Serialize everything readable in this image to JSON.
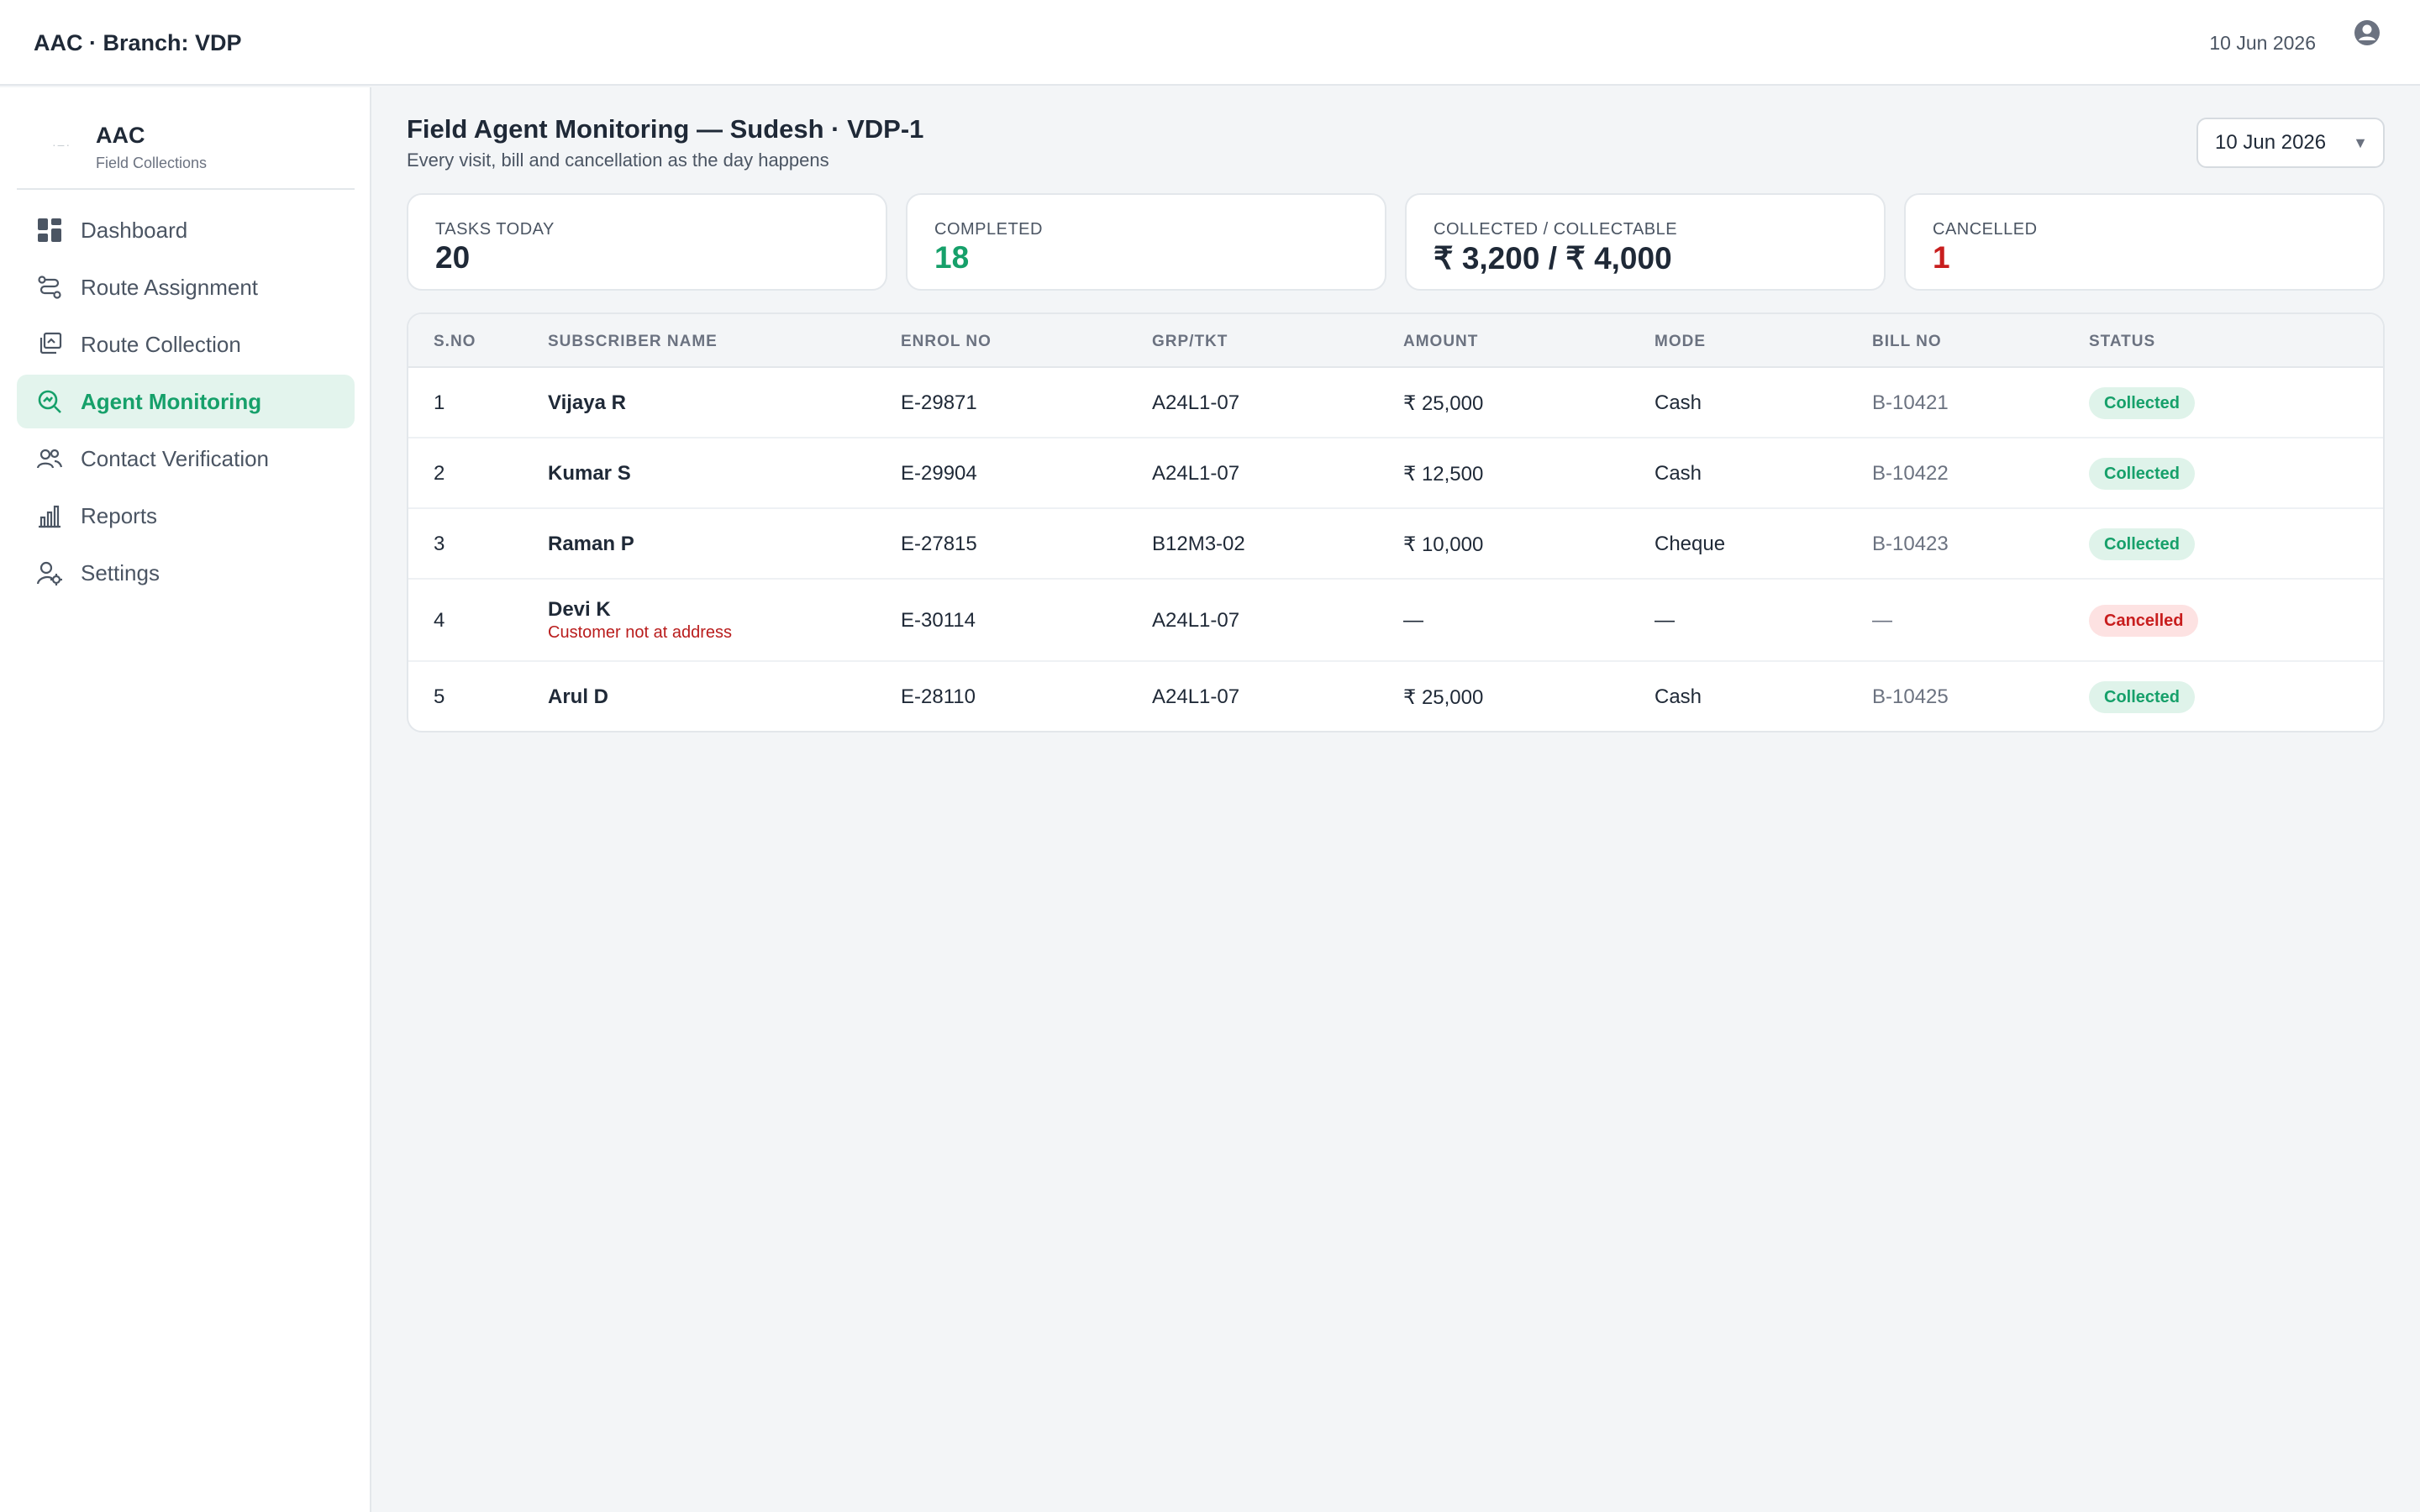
{
  "topbar": {
    "brand": "AAC · Branch: VDP",
    "date": "10 Jun 2026",
    "user_icon": "user-circle-icon"
  },
  "sidebar": {
    "logo_name": "AAC",
    "logo_sub": "Field Collections",
    "items": [
      {
        "label": "Dashboard",
        "icon": "dashboard-grid-icon",
        "active": false
      },
      {
        "label": "Route Assignment",
        "icon": "route-icon",
        "active": false
      },
      {
        "label": "Route Collection",
        "icon": "collection-stack-icon",
        "active": false
      },
      {
        "label": "Agent Monitoring",
        "icon": "search-monitor-icon",
        "active": true
      },
      {
        "label": "Contact Verification",
        "icon": "users-icon",
        "active": false
      },
      {
        "label": "Reports",
        "icon": "bar-chart-icon",
        "active": false
      },
      {
        "label": "Settings",
        "icon": "user-settings-icon",
        "active": false
      }
    ]
  },
  "main": {
    "title": "Field Agent Monitoring — Sudesh · VDP-1",
    "subtitle": "Every visit, bill and cancellation as the day happens",
    "date_filter": "10 Jun 2026"
  },
  "kpis": [
    {
      "label": "TASKS TODAY",
      "value": "20",
      "tone": "default"
    },
    {
      "label": "COMPLETED",
      "value": "18",
      "tone": "green"
    },
    {
      "label": "COLLECTED / COLLECTABLE",
      "value": "₹ 3,200 / ₹ 4,000",
      "tone": "default"
    },
    {
      "label": "CANCELLED",
      "value": "1",
      "tone": "red"
    }
  ],
  "table": {
    "headers": [
      "S.NO",
      "SUBSCRIBER NAME",
      "ENROL NO",
      "GRP/TKT",
      "AMOUNT",
      "MODE",
      "BILL NO",
      "STATUS"
    ],
    "rows": [
      {
        "sno": "1",
        "name": "Vijaya R",
        "note": "",
        "enrol": "E-29871",
        "grp": "A24L1-07",
        "amount": "₹ 25,000",
        "mode": "Cash",
        "bill": "B-10421",
        "status": "Collected"
      },
      {
        "sno": "2",
        "name": "Kumar S",
        "note": "",
        "enrol": "E-29904",
        "grp": "A24L1-07",
        "amount": "₹ 12,500",
        "mode": "Cash",
        "bill": "B-10422",
        "status": "Collected"
      },
      {
        "sno": "3",
        "name": "Raman P",
        "note": "",
        "enrol": "E-27815",
        "grp": "B12M3-02",
        "amount": "₹ 10,000",
        "mode": "Cheque",
        "bill": "B-10423",
        "status": "Collected"
      },
      {
        "sno": "4",
        "name": "Devi K",
        "note": "Customer not at address",
        "enrol": "E-30114",
        "grp": "A24L1-07",
        "amount": "—",
        "mode": "—",
        "bill": "—",
        "status": "Cancelled"
      },
      {
        "sno": "5",
        "name": "Arul D",
        "note": "",
        "enrol": "E-28110",
        "grp": "A24L1-07",
        "amount": "₹ 25,000",
        "mode": "Cash",
        "bill": "B-10425",
        "status": "Collected"
      }
    ]
  },
  "colors": {
    "accent": "#16a06a",
    "danger": "#c81e1e",
    "active_bg": "#e3f4ed"
  }
}
